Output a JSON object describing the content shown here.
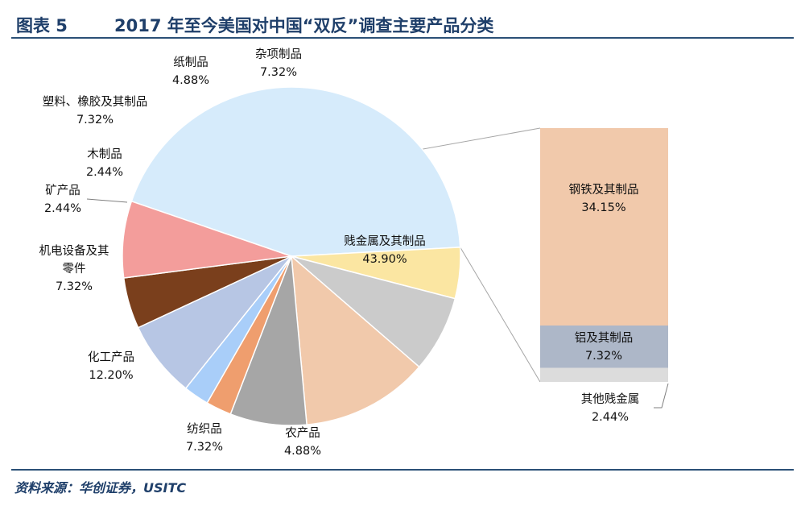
{
  "header": {
    "figure_label": "图表 5",
    "title": "2017 年至今美国对中国“双反”调查主要产品分类"
  },
  "source": "资料来源：华创证券，USITC",
  "colors": {
    "title": "#1f3f6a",
    "rule": "#2b5077"
  },
  "chart_data": {
    "type": "pie",
    "title": "2017 年至今美国对中国“双反”调查主要产品分类",
    "unit": "%",
    "slices": [
      {
        "name": "贱金属及其制品",
        "value": 43.9,
        "label": "43.90%",
        "color": "#d6ebfb",
        "exploded": true
      },
      {
        "name": "农产品",
        "value": 4.88,
        "label": "4.88%",
        "color": "#fbe6a2"
      },
      {
        "name": "纺织品",
        "value": 7.32,
        "label": "7.32%",
        "color": "#cbcbcb"
      },
      {
        "name": "化工产品",
        "value": 12.2,
        "label": "12.20%",
        "color": "#f1c9ab"
      },
      {
        "name": "机电设备及其零件",
        "value": 7.32,
        "label": "7.32%",
        "color": "#a6a6a6"
      },
      {
        "name": "矿产品",
        "value": 2.44,
        "label": "2.44%",
        "color": "#ef9e6e"
      },
      {
        "name": "木制品",
        "value": 2.44,
        "label": "2.44%",
        "color": "#a9cef9"
      },
      {
        "name": "塑料、橡胶及其制品",
        "value": 7.32,
        "label": "7.32%",
        "color": "#b7c6e4"
      },
      {
        "name": "纸制品",
        "value": 4.88,
        "label": "4.88%",
        "color": "#7a3f1c"
      },
      {
        "name": "杂项制品",
        "value": 7.32,
        "label": "7.32%",
        "color": "#f39d9b"
      }
    ],
    "breakdown": {
      "parent": "贱金属及其制品",
      "items": [
        {
          "name": "钢铁及其制品",
          "value": 34.15,
          "label": "34.15%",
          "color": "#f1c9ab"
        },
        {
          "name": "铝及其制品",
          "value": 7.32,
          "label": "7.32%",
          "color": "#adb7c8"
        },
        {
          "name": "其他贱金属",
          "value": 2.44,
          "label": "2.44%",
          "color": "#dcdcdc"
        }
      ]
    }
  }
}
